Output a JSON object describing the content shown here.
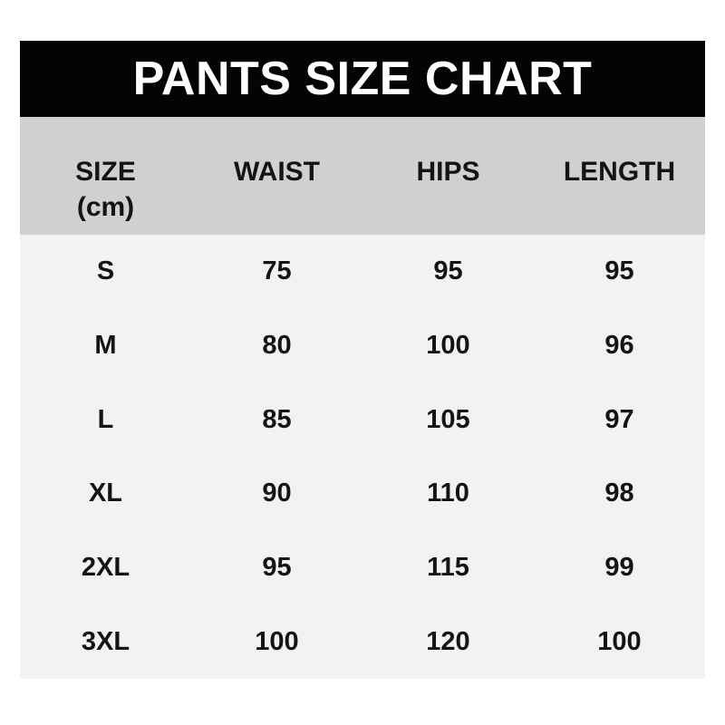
{
  "title": "PANTS SIZE CHART",
  "header": {
    "size_label": "SIZE",
    "size_unit": "(cm)",
    "waist_label": "WAIST",
    "hips_label": "HIPS",
    "length_label": "LENGTH"
  },
  "chart_data": {
    "type": "table",
    "title": "PANTS SIZE CHART",
    "columns": [
      "SIZE (cm)",
      "WAIST",
      "HIPS",
      "LENGTH"
    ],
    "rows": [
      [
        "S",
        "75",
        "95",
        "95"
      ],
      [
        "M",
        "80",
        "100",
        "96"
      ],
      [
        "L",
        "85",
        "105",
        "97"
      ],
      [
        "XL",
        "90",
        "110",
        "98"
      ],
      [
        "2XL",
        "95",
        "115",
        "99"
      ],
      [
        "3XL",
        "100",
        "120",
        "100"
      ]
    ]
  },
  "colors": {
    "page_bg": "#ffffff",
    "title_bg": "#040404",
    "title_text": "#ffffff",
    "header_bg": "#d0d0d0",
    "body_bg": "#f2f2f2",
    "text": "#141414"
  }
}
